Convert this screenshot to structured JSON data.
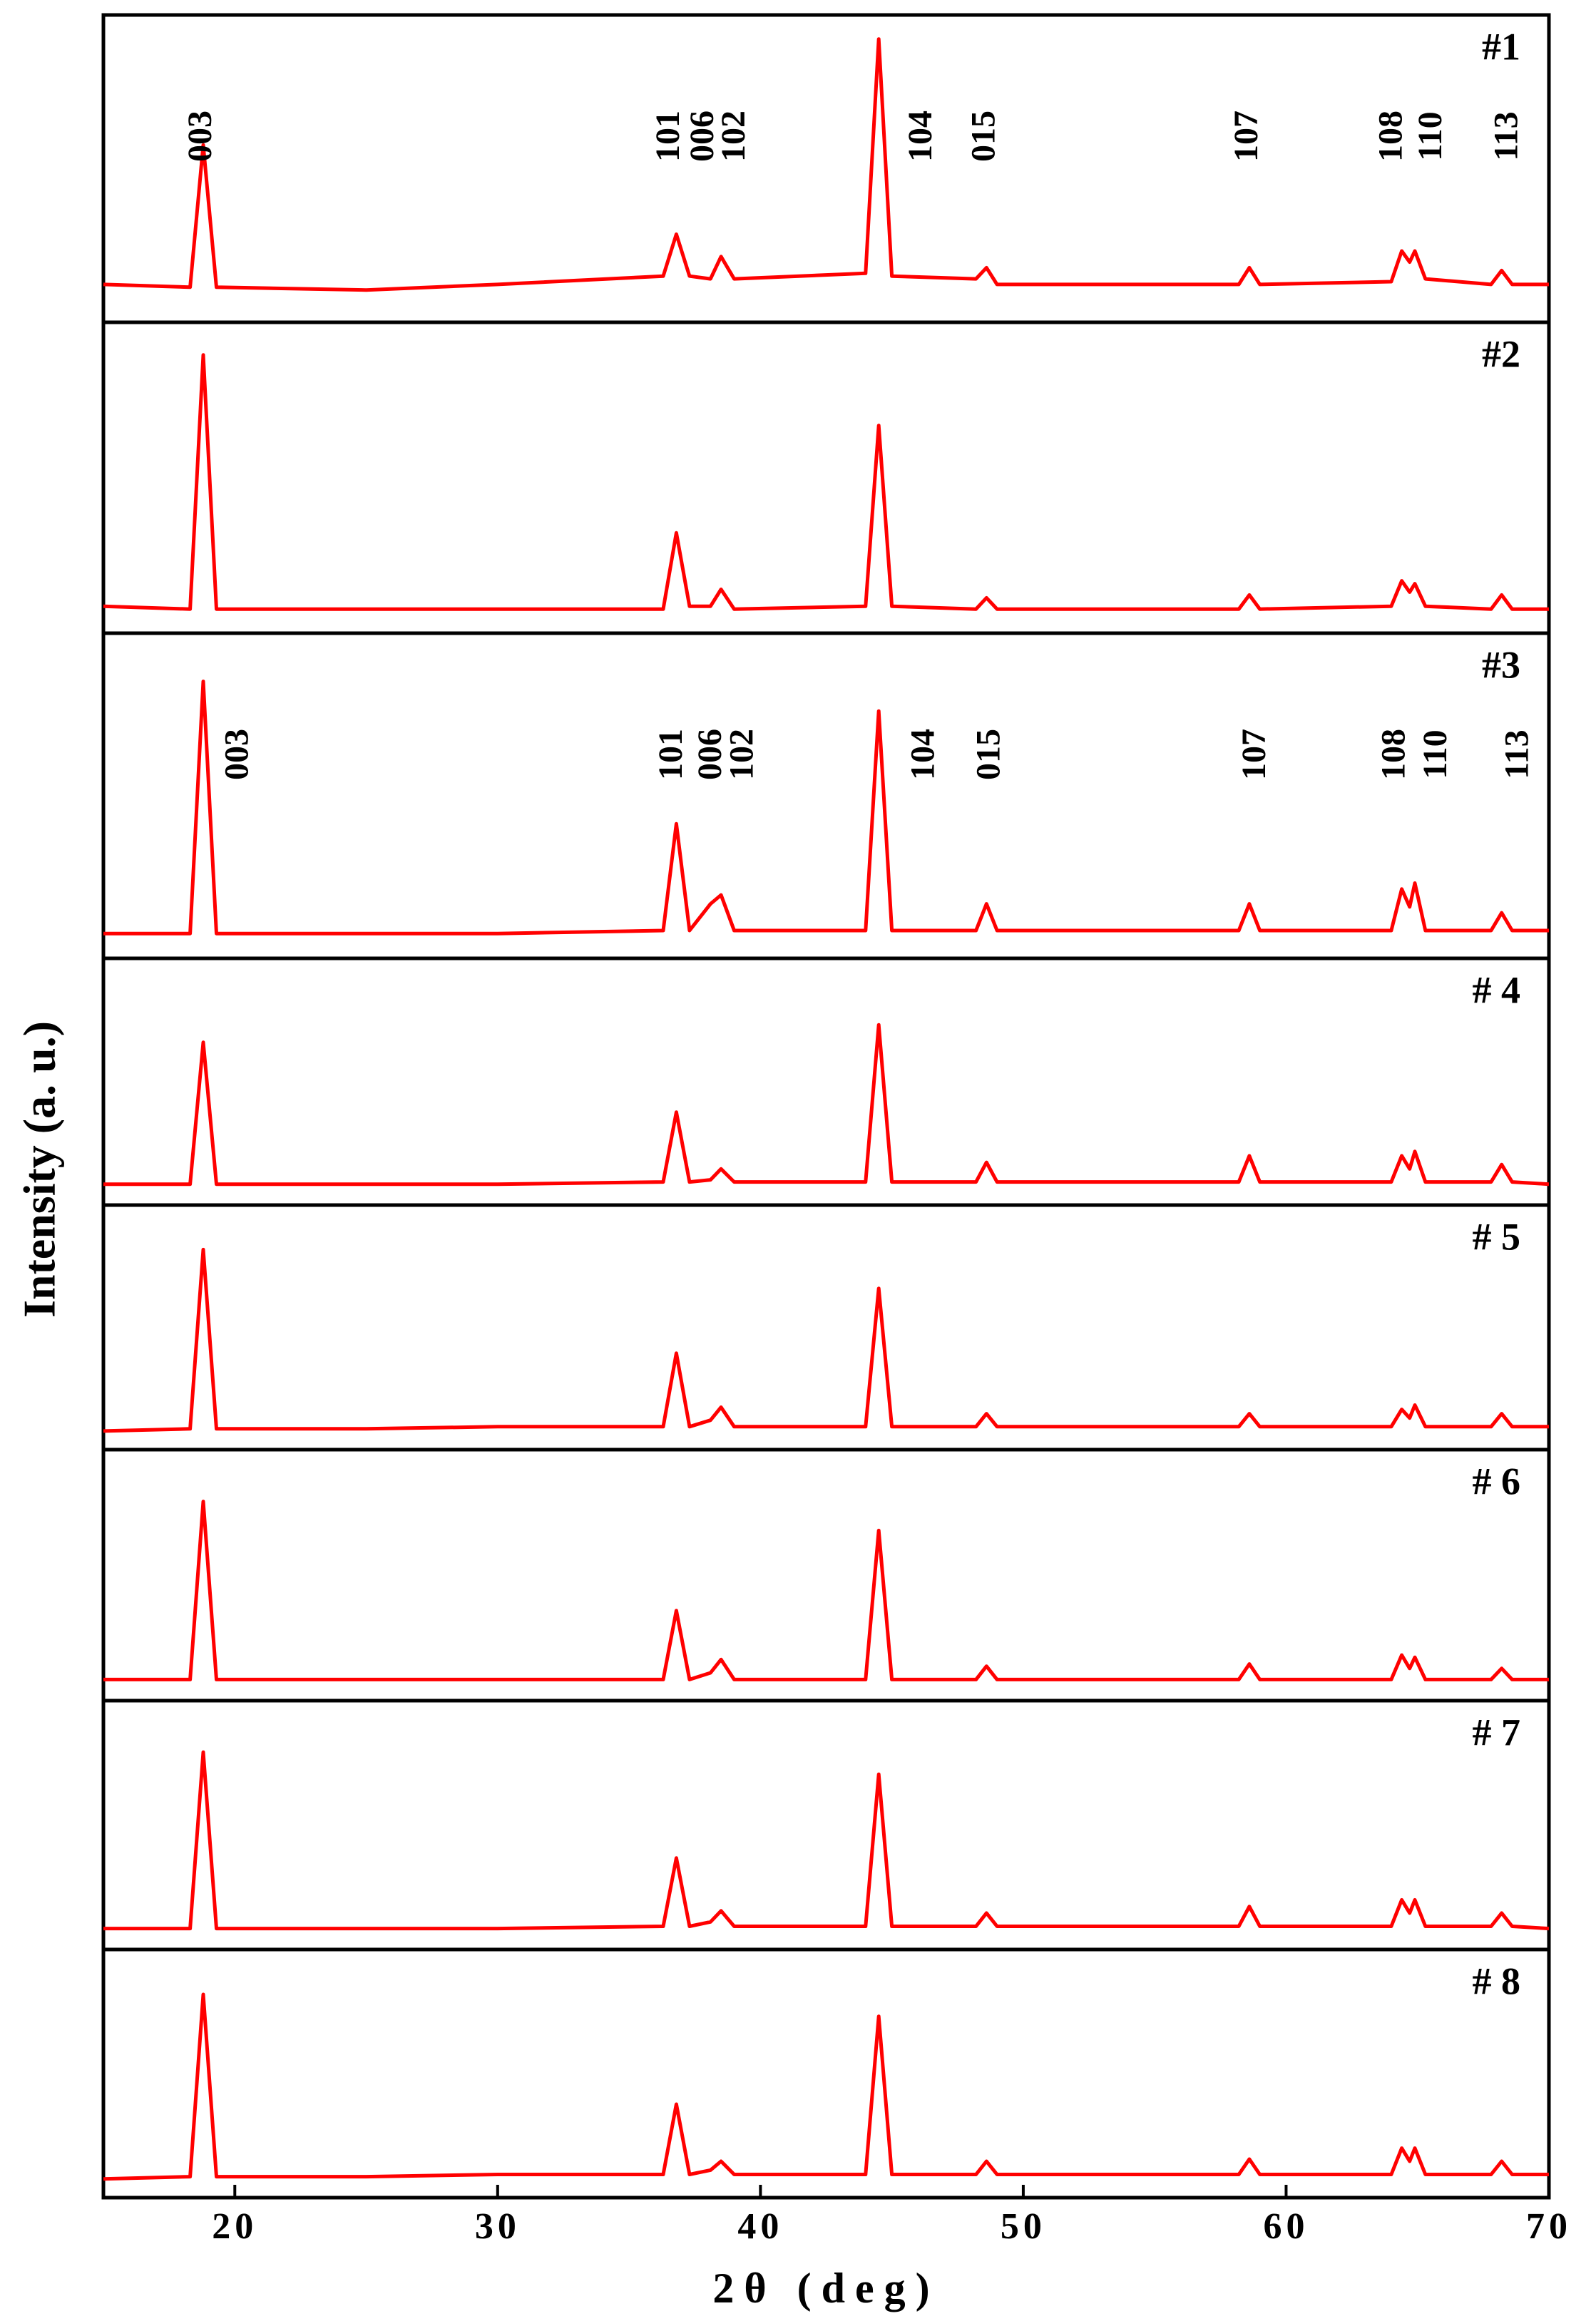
{
  "chart_data": [
    {
      "type": "line",
      "name": "#1",
      "ylabel": "Intensity (a. u.)",
      "xlim": [
        15,
        70
      ],
      "ylim": [
        0,
        100
      ],
      "color": "#ff0000",
      "x": [
        15,
        18.3,
        18.8,
        19.3,
        25,
        30,
        36.3,
        36.8,
        37.3,
        38.1,
        38.5,
        39.0,
        44.0,
        44.5,
        45.0,
        48.2,
        48.6,
        49.0,
        55,
        58.2,
        58.6,
        59.0,
        64.0,
        64.4,
        64.7,
        64.9,
        65.3,
        67.8,
        68.2,
        68.6,
        70
      ],
      "values": [
        10,
        9,
        60,
        9,
        8,
        10,
        13,
        28,
        13,
        12,
        20,
        12,
        14,
        98,
        13,
        12,
        16,
        10,
        10,
        10,
        16,
        10,
        11,
        22,
        18,
        22,
        12,
        10,
        15,
        10,
        10
      ],
      "annotations": [
        {
          "text": "003",
          "x": 18.8
        },
        {
          "text": "101",
          "x": 36.6
        },
        {
          "text": "006",
          "x": 37.9
        },
        {
          "text": "102",
          "x": 39.1
        },
        {
          "text": "104",
          "x": 46.2
        },
        {
          "text": "015",
          "x": 48.6
        },
        {
          "text": "107",
          "x": 58.6
        },
        {
          "text": "108",
          "x": 64.1
        },
        {
          "text": "110",
          "x": 65.6
        },
        {
          "text": "113",
          "x": 68.5
        }
      ]
    },
    {
      "type": "line",
      "name": "#2",
      "xlim": [
        15,
        70
      ],
      "ylim": [
        0,
        100
      ],
      "color": "#ff0000",
      "x": [
        15,
        18.3,
        18.8,
        19.3,
        25,
        30,
        36.3,
        36.8,
        37.3,
        38.1,
        38.5,
        39.0,
        44.0,
        44.5,
        45.0,
        48.2,
        48.6,
        49.0,
        55,
        58.2,
        58.6,
        59.0,
        64.0,
        64.4,
        64.7,
        64.9,
        65.3,
        67.8,
        68.2,
        68.6,
        70
      ],
      "values": [
        6,
        5,
        95,
        5,
        5,
        5,
        5,
        32,
        6,
        6,
        12,
        5,
        6,
        70,
        6,
        5,
        9,
        5,
        5,
        5,
        10,
        5,
        6,
        15,
        11,
        14,
        6,
        5,
        10,
        5,
        5
      ]
    },
    {
      "type": "line",
      "name": "#3",
      "xlim": [
        15,
        70
      ],
      "ylim": [
        0,
        100
      ],
      "color": "#ff0000",
      "x": [
        15,
        18.3,
        18.8,
        19.3,
        25,
        30,
        36.3,
        36.8,
        37.3,
        38.1,
        38.5,
        39.0,
        44.0,
        44.5,
        45.0,
        48.2,
        48.6,
        49.0,
        55,
        58.2,
        58.6,
        59.0,
        64.0,
        64.4,
        64.7,
        64.9,
        65.3,
        67.8,
        68.2,
        68.6,
        70
      ],
      "values": [
        5,
        5,
        90,
        5,
        5,
        5,
        6,
        42,
        6,
        15,
        18,
        6,
        6,
        80,
        6,
        6,
        15,
        6,
        6,
        6,
        15,
        6,
        6,
        20,
        14,
        22,
        6,
        6,
        12,
        6,
        6
      ],
      "annotations": [
        {
          "text": "003",
          "x": 20.2
        },
        {
          "text": "101",
          "x": 36.7
        },
        {
          "text": "006",
          "x": 38.2
        },
        {
          "text": "102",
          "x": 39.4
        },
        {
          "text": "104",
          "x": 46.3
        },
        {
          "text": "015",
          "x": 48.8
        },
        {
          "text": "107",
          "x": 58.9
        },
        {
          "text": "108",
          "x": 64.2
        },
        {
          "text": "110",
          "x": 65.8
        },
        {
          "text": "113",
          "x": 68.9
        }
      ]
    },
    {
      "type": "line",
      "name": "# 4",
      "xlim": [
        15,
        70
      ],
      "ylim": [
        0,
        100
      ],
      "color": "#ff0000",
      "x": [
        15,
        18.3,
        18.8,
        19.3,
        25,
        30,
        36.3,
        36.8,
        37.3,
        38.1,
        38.5,
        39.0,
        44.0,
        44.5,
        45.0,
        48.2,
        48.6,
        49.0,
        55,
        58.2,
        58.6,
        59.0,
        64.0,
        64.4,
        64.7,
        64.9,
        65.3,
        67.8,
        68.2,
        68.6,
        70
      ],
      "values": [
        5,
        5,
        70,
        5,
        5,
        5,
        6,
        38,
        6,
        7,
        12,
        6,
        6,
        78,
        6,
        6,
        15,
        6,
        6,
        6,
        18,
        6,
        6,
        18,
        12,
        20,
        6,
        6,
        14,
        6,
        5
      ]
    },
    {
      "type": "line",
      "name": "# 5",
      "xlim": [
        15,
        70
      ],
      "ylim": [
        0,
        100
      ],
      "color": "#ff0000",
      "x": [
        15,
        18.3,
        18.8,
        19.3,
        25,
        30,
        36.3,
        36.8,
        37.3,
        38.1,
        38.5,
        39.0,
        44.0,
        44.5,
        45.0,
        48.2,
        48.6,
        49.0,
        55,
        58.2,
        58.6,
        59.0,
        64.0,
        64.4,
        64.7,
        64.9,
        65.3,
        67.8,
        68.2,
        68.6,
        70
      ],
      "values": [
        4,
        5,
        88,
        5,
        5,
        6,
        6,
        40,
        6,
        9,
        15,
        6,
        6,
        70,
        6,
        6,
        12,
        6,
        6,
        6,
        12,
        6,
        6,
        14,
        10,
        16,
        6,
        6,
        12,
        6,
        6
      ]
    },
    {
      "type": "line",
      "name": "# 6",
      "xlim": [
        15,
        70
      ],
      "ylim": [
        0,
        100
      ],
      "color": "#ff0000",
      "x": [
        15,
        18.3,
        18.8,
        19.3,
        25,
        30,
        36.3,
        36.8,
        37.3,
        38.1,
        38.5,
        39.0,
        44.0,
        44.5,
        45.0,
        48.2,
        48.6,
        49.0,
        55,
        58.2,
        58.6,
        59.0,
        64.0,
        64.4,
        64.7,
        64.9,
        65.3,
        67.8,
        68.2,
        68.6,
        70
      ],
      "values": [
        5,
        5,
        85,
        5,
        5,
        5,
        5,
        36,
        5,
        8,
        14,
        5,
        5,
        72,
        5,
        5,
        11,
        5,
        5,
        5,
        12,
        5,
        5,
        16,
        10,
        15,
        5,
        5,
        10,
        5,
        5
      ]
    },
    {
      "type": "line",
      "name": "# 7",
      "xlim": [
        15,
        70
      ],
      "ylim": [
        0,
        100
      ],
      "color": "#ff0000",
      "x": [
        15,
        18.3,
        18.8,
        19.3,
        25,
        30,
        36.3,
        36.8,
        37.3,
        38.1,
        38.5,
        39.0,
        44.0,
        44.5,
        45.0,
        48.2,
        48.6,
        49.0,
        55,
        58.2,
        58.6,
        59.0,
        64.0,
        64.4,
        64.7,
        64.9,
        65.3,
        67.8,
        68.2,
        68.6,
        70
      ],
      "values": [
        5,
        5,
        85,
        5,
        5,
        5,
        6,
        37,
        6,
        8,
        13,
        6,
        6,
        75,
        6,
        6,
        12,
        6,
        6,
        6,
        15,
        6,
        6,
        18,
        12,
        18,
        6,
        6,
        12,
        6,
        5
      ]
    },
    {
      "type": "line",
      "name": "# 8",
      "xlabel": "2θ (deg)",
      "xlim": [
        15,
        70
      ],
      "ylim": [
        0,
        100
      ],
      "xticks": [
        20,
        30,
        40,
        50,
        60,
        70
      ],
      "color": "#ff0000",
      "x": [
        15,
        18.3,
        18.8,
        19.3,
        25,
        30,
        36.3,
        36.8,
        37.3,
        38.1,
        38.5,
        39.0,
        44.0,
        44.5,
        45.0,
        48.2,
        48.6,
        49.0,
        55,
        58.2,
        58.6,
        59.0,
        64.0,
        64.4,
        64.7,
        64.9,
        65.3,
        67.8,
        68.2,
        68.6,
        70
      ],
      "values": [
        4,
        5,
        88,
        5,
        5,
        6,
        6,
        38,
        6,
        8,
        12,
        6,
        6,
        78,
        6,
        6,
        12,
        6,
        6,
        6,
        13,
        6,
        6,
        18,
        12,
        18,
        6,
        6,
        12,
        6,
        6
      ]
    }
  ]
}
